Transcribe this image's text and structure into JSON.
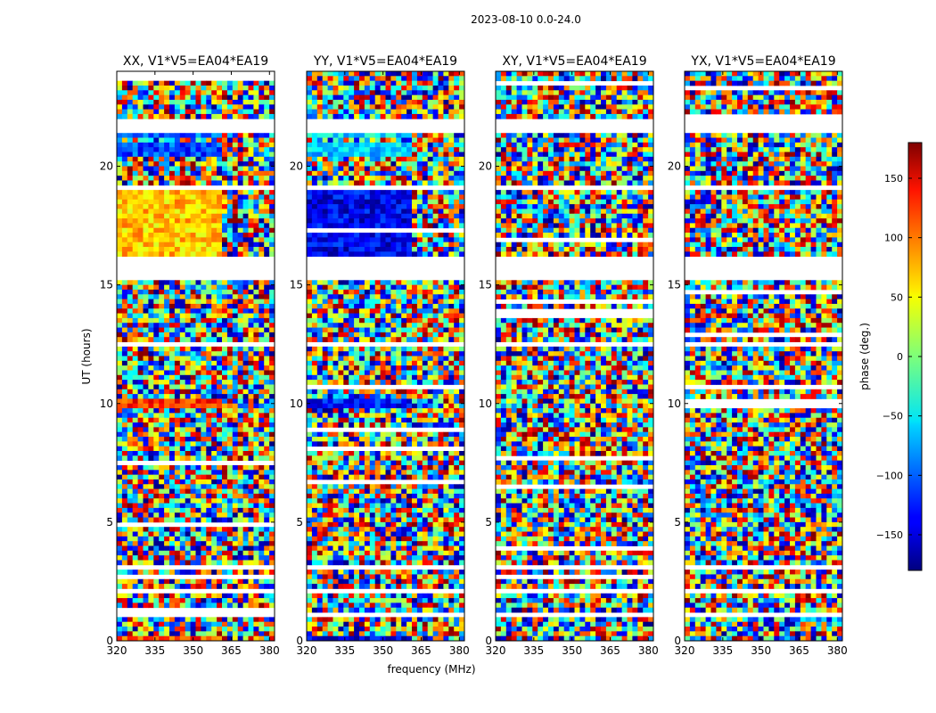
{
  "chart_data": {
    "type": "heatmap",
    "title": "2023-08-10 0.0-24.0",
    "xlabel": "frequency (MHz)",
    "ylabel": "UT (hours)",
    "xlim": [
      320,
      382
    ],
    "ylim": [
      0,
      24
    ],
    "xticks": [
      320,
      335,
      350,
      365,
      380
    ],
    "yticks": [
      0,
      5,
      10,
      15,
      20
    ],
    "panels": [
      {
        "title": "XX, V1*V5=EA04*EA19",
        "polarization": "XX"
      },
      {
        "title": "YY, V1*V5=EA04*EA19",
        "polarization": "YY"
      },
      {
        "title": "XY, V1*V5=EA04*EA19",
        "polarization": "XY"
      },
      {
        "title": "YX, V1*V5=EA04*EA19",
        "polarization": "YX"
      }
    ],
    "colorbar": {
      "label": "phase (deg.)",
      "range": [
        -180,
        180
      ],
      "ticks": [
        -150,
        -100,
        -50,
        0,
        50,
        100,
        150
      ],
      "colormap": "jet"
    },
    "flagged_time_ranges_hours": [
      [
        16.2,
        15.2
      ],
      [
        21.9,
        21.5
      ],
      [
        19.2,
        19.0
      ],
      [
        2.2,
        2.0
      ],
      [
        1.2,
        1.0
      ],
      [
        3.2,
        3.0
      ],
      [
        12.6,
        12.4
      ]
    ],
    "coherent_band_hours": {
      "XX": [
        [
          16.3,
          19.0,
          65
        ],
        [
          20.5,
          21.0,
          -110
        ],
        [
          21.3,
          21.6,
          -100
        ],
        [
          9.9,
          10.1,
          120
        ],
        [
          0.1,
          0.3,
          110
        ]
      ],
      "YY": [
        [
          16.3,
          19.0,
          -140
        ],
        [
          20.5,
          21.0,
          -60
        ],
        [
          21.3,
          21.6,
          -55
        ],
        [
          9.9,
          10.1,
          -130
        ],
        [
          0.1,
          0.3,
          -140
        ]
      ]
    },
    "uncalibrated_boundary_mhz": 361
  }
}
